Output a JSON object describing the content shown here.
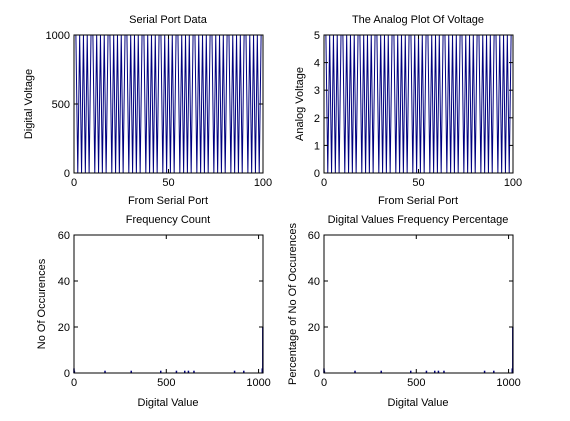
{
  "figure": {
    "background": "#ffffff",
    "line_color": "#00007f",
    "axis_color": "#000000"
  },
  "chart_data": [
    {
      "type": "line",
      "title": "Serial Port Data",
      "xlabel": "From Serial Port",
      "ylabel": "Digital Voltage",
      "xlim": [
        0,
        100
      ],
      "ylim": [
        0,
        1000
      ],
      "xticks": [
        0,
        50,
        100
      ],
      "yticks": [
        0,
        500,
        1000
      ],
      "grid": false,
      "series": [
        {
          "values": [
            1023,
            1023,
            0,
            1023,
            0,
            1023,
            0,
            1023,
            0,
            1023,
            1023,
            0,
            1023,
            0,
            1023,
            0,
            1023,
            0,
            1023,
            1023,
            0,
            1023,
            0,
            1023,
            0,
            1023,
            0,
            1023,
            1023,
            0,
            1023,
            0,
            1023,
            0,
            1023,
            0,
            1023,
            1023,
            0,
            1023,
            0,
            1023,
            0,
            1023,
            0,
            1023,
            1023,
            0,
            1023,
            0,
            1023,
            0,
            1023,
            0,
            1023,
            1023,
            0,
            1023,
            0,
            1023,
            0,
            1023,
            0,
            1023,
            1023,
            0,
            1023,
            0,
            1023,
            0,
            1023,
            0,
            1023,
            1023,
            0,
            1023,
            0,
            1023,
            0,
            1023,
            0,
            1023,
            1023,
            0,
            1023,
            0,
            1023,
            0,
            1023,
            0,
            1023,
            1023,
            0,
            1023,
            0,
            1023,
            0,
            1023,
            0,
            1023,
            1023
          ]
        }
      ]
    },
    {
      "type": "line",
      "title": "The Analog Plot Of Voltage",
      "xlabel": "From Serial Port",
      "ylabel": "Analog Voltage",
      "xlim": [
        0,
        100
      ],
      "ylim": [
        0,
        5
      ],
      "xticks": [
        0,
        50,
        100
      ],
      "yticks": [
        0,
        1,
        2,
        3,
        4,
        5
      ],
      "grid": false,
      "series": [
        {
          "values": [
            5,
            5,
            0,
            5,
            0,
            5,
            0,
            5,
            0,
            5,
            5,
            0,
            5,
            0,
            5,
            0,
            5,
            0,
            5,
            5,
            0,
            5,
            0,
            5,
            0,
            5,
            0,
            5,
            5,
            0,
            5,
            0,
            5,
            0,
            5,
            0,
            5,
            5,
            0,
            5,
            0,
            5,
            0,
            5,
            0,
            5,
            5,
            0,
            5,
            0,
            5,
            0,
            5,
            0,
            5,
            5,
            0,
            5,
            0,
            5,
            0,
            5,
            0,
            5,
            5,
            0,
            5,
            0,
            5,
            0,
            5,
            0,
            5,
            5,
            0,
            5,
            0,
            5,
            0,
            5,
            0,
            5,
            5,
            0,
            5,
            0,
            5,
            0,
            5,
            0,
            5,
            5,
            0,
            5,
            0,
            5,
            0,
            5,
            0,
            5,
            5
          ]
        }
      ]
    },
    {
      "type": "bar",
      "title": "Frequency Count",
      "xlabel": "Digital Value",
      "ylabel": "No Of Occurences",
      "xlim": [
        0,
        1024
      ],
      "ylim": [
        0,
        60
      ],
      "xticks": [
        0,
        500,
        1000
      ],
      "yticks": [
        0,
        20,
        40,
        60
      ],
      "grid": false,
      "x": [
        0,
        2,
        168,
        310,
        470,
        555,
        600,
        620,
        650,
        870,
        920,
        1020,
        1023
      ],
      "values": [
        2,
        1,
        1,
        1,
        1,
        1,
        1,
        1,
        1,
        1,
        1,
        2,
        20
      ]
    },
    {
      "type": "bar",
      "title": "Digital Values Frequency Percentage",
      "xlabel": "Digital Value",
      "ylabel": "Percentage of No Of Occurences",
      "xlim": [
        0,
        1024
      ],
      "ylim": [
        0,
        60
      ],
      "xticks": [
        0,
        500,
        1000
      ],
      "yticks": [
        0,
        20,
        40,
        60
      ],
      "grid": false,
      "x": [
        0,
        2,
        168,
        310,
        470,
        555,
        600,
        620,
        650,
        870,
        920,
        1020,
        1023
      ],
      "values": [
        2,
        1,
        1,
        1,
        1,
        1,
        1,
        1,
        1,
        1,
        1,
        2,
        20
      ]
    }
  ]
}
